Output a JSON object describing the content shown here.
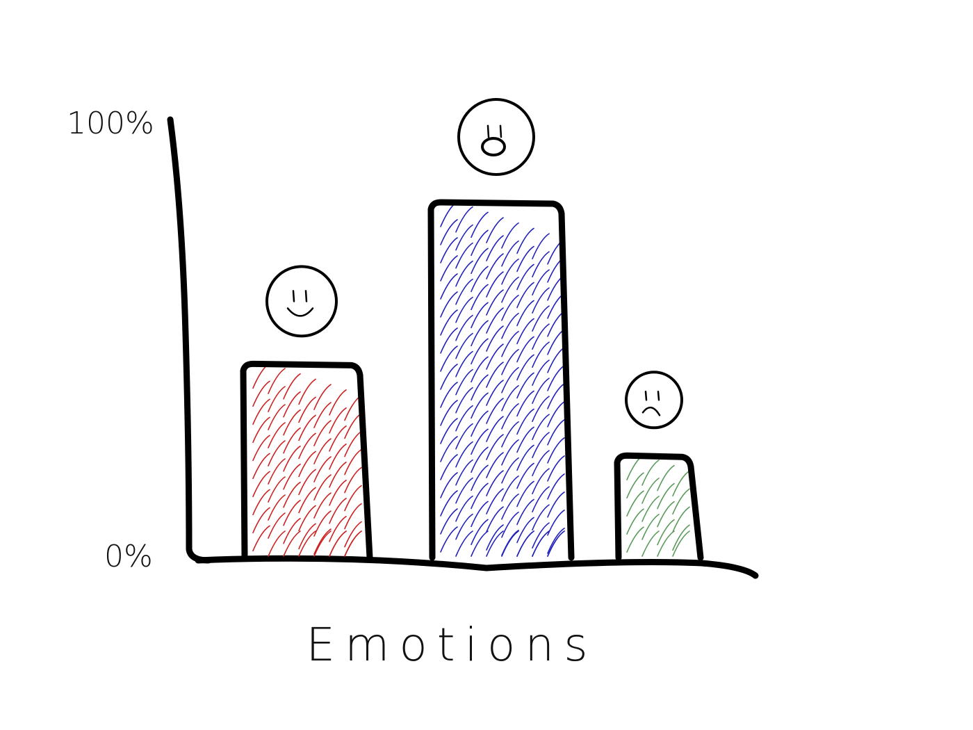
{
  "chart_data": {
    "type": "bar",
    "categories": [
      "happy",
      "surprised",
      "sad"
    ],
    "values": [
      45,
      82,
      24
    ],
    "ylim": [
      0,
      100
    ],
    "y_ticks": [
      "0%",
      "100%"
    ],
    "xlabel": "Emotions",
    "ylabel": "",
    "title": "",
    "colors": [
      "#cc2222",
      "#2222bb",
      "#5a9a5a"
    ],
    "icons": [
      "smiling-face-icon",
      "surprised-face-icon",
      "sad-face-icon"
    ],
    "grid": false,
    "legend": "none"
  }
}
